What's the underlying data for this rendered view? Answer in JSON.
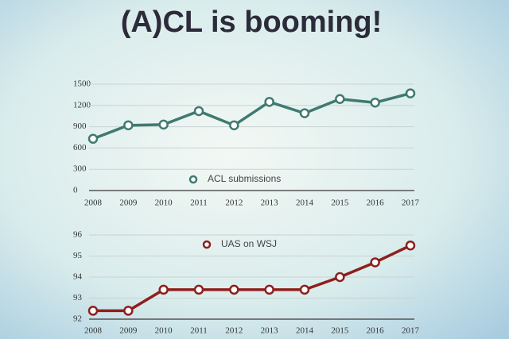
{
  "title": "(A)CL is booming!",
  "chart_data": [
    {
      "type": "line",
      "categories": [
        "2008",
        "2009",
        "2010",
        "2011",
        "2012",
        "2013",
        "2014",
        "2015",
        "2016",
        "2017"
      ],
      "series": [
        {
          "name": "ACL submissions",
          "color": "#3f7a70",
          "values": [
            730,
            920,
            930,
            1120,
            920,
            1250,
            1090,
            1290,
            1240,
            1370
          ]
        }
      ],
      "ylim": [
        0,
        1500
      ],
      "yticks": [
        0,
        300,
        600,
        900,
        1200,
        1500
      ],
      "grid": true,
      "legend": "bottom"
    },
    {
      "type": "line",
      "categories": [
        "2008",
        "2009",
        "2010",
        "2011",
        "2012",
        "2013",
        "2014",
        "2015",
        "2016",
        "2017"
      ],
      "series": [
        {
          "name": "UAS on WSJ",
          "color": "#8e1f1c",
          "values": [
            92.4,
            92.4,
            93.4,
            93.4,
            93.4,
            93.4,
            93.4,
            94.0,
            94.7,
            95.5
          ]
        }
      ],
      "ylim": [
        92,
        96
      ],
      "yticks": [
        92,
        93,
        94,
        95,
        96
      ],
      "grid": true,
      "legend": "top"
    }
  ]
}
